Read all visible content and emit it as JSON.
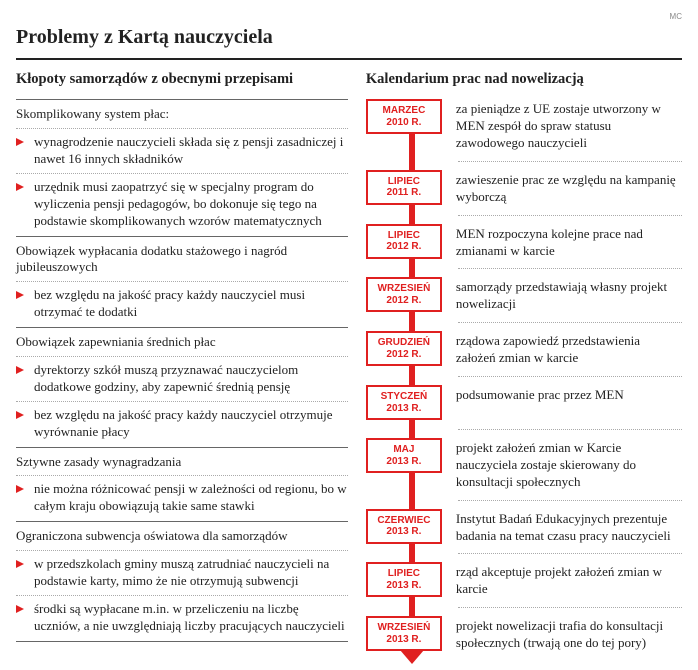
{
  "credit": "MC",
  "title": "Problemy z Kartą nauczyciela",
  "colors": {
    "accent": "#e02020",
    "rule": "#666666",
    "dotted": "#aaaaaa",
    "text": "#222222"
  },
  "left": {
    "title": "Kłopoty samorządów z obecnymi przepisami",
    "sections": [
      {
        "head": "Skomplikowany system płac:",
        "items": [
          "wynagrodzenie nauczycieli składa się z pensji zasadniczej i nawet 16 innych składników",
          "urzędnik musi zaopatrzyć się w specjalny program do wyliczenia pensji pedagogów, bo dokonuje się tego na podstawie skomplikowanych wzorów matematycznych"
        ]
      },
      {
        "head": "Obowiązek wypłacania dodatku stażowego i nagród jubileuszowych",
        "items": [
          "bez względu na jakość pracy każdy nauczyciel musi otrzymać te dodatki"
        ]
      },
      {
        "head": "Obowiązek zapewniania średnich płac",
        "items": [
          "dyrektorzy szkół muszą przyznawać nauczycielom dodatkowe godziny, aby zapewnić średnią pensję",
          "bez względu na jakość pracy każdy nauczyciel otrzymuje wyrównanie płacy"
        ]
      },
      {
        "head": "Sztywne zasady wynagradzania",
        "items": [
          "nie można różnicować pensji w zależności od regionu, bo w całym kraju obowiązują takie same stawki"
        ]
      },
      {
        "head": "Ograniczona subwencja oświatowa dla samorządów",
        "items": [
          "w przedszkolach gminy muszą zatrudniać nauczycieli na podstawie karty, mimo że nie otrzymują subwencji",
          "środki są wypłacane m.in. w przeliczeniu na liczbę uczniów, a nie uwzględniają liczby pracujących nauczycieli"
        ]
      }
    ]
  },
  "right": {
    "title": "Kalendarium prac nad nowelizacją",
    "items": [
      {
        "month": "MARZEC",
        "year": "2010 R.",
        "desc": "za pieniądze z UE zostaje utworzony w MEN zespół do spraw statusu zawodowego nauczycieli"
      },
      {
        "month": "LIPIEC",
        "year": "2011 R.",
        "desc": "zawieszenie prac ze względu na kampanię wyborczą"
      },
      {
        "month": "LIPIEC",
        "year": "2012 R.",
        "desc": "MEN rozpoczyna kolejne prace nad zmianami w karcie"
      },
      {
        "month": "WRZESIEŃ",
        "year": "2012 R.",
        "desc": "samorządy przedstawiają własny projekt nowelizacji"
      },
      {
        "month": "GRUDZIEŃ",
        "year": "2012 R.",
        "desc": "rządowa zapowiedź przedstawienia założeń zmian w karcie"
      },
      {
        "month": "STYCZEŃ",
        "year": "2013 R.",
        "desc": "podsumowanie prac przez MEN"
      },
      {
        "month": "MAJ",
        "year": "2013 R.",
        "desc": "projekt założeń zmian w Karcie nauczyciela zostaje skierowany do konsultacji społecznych"
      },
      {
        "month": "CZERWIEC",
        "year": "2013 R.",
        "desc": "Instytut Badań Edukacyjnych prezentuje badania na temat czasu pracy nauczycieli"
      },
      {
        "month": "LIPIEC",
        "year": "2013 R.",
        "desc": "rząd akceptuje projekt założeń zmian w karcie"
      },
      {
        "month": "WRZESIEŃ",
        "year": "2013 R.",
        "desc": "projekt nowelizacji trafia do konsultacji społecznych (trwają one do tej pory)"
      }
    ]
  }
}
